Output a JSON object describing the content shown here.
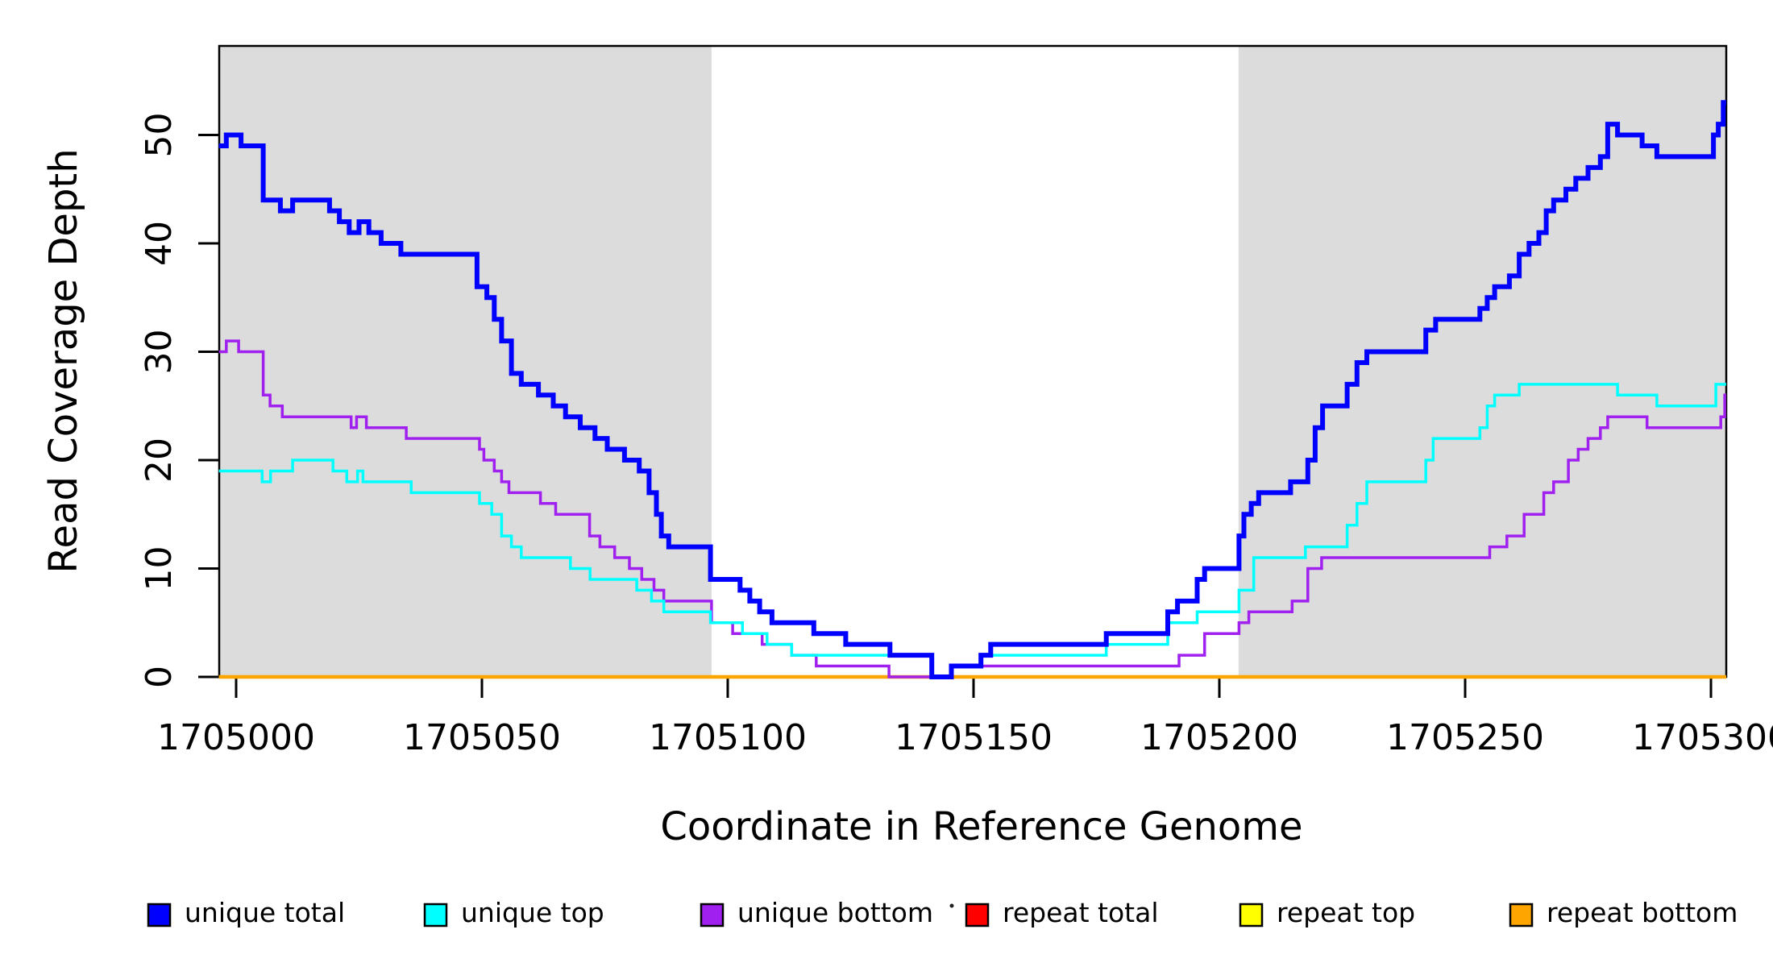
{
  "figure": {
    "xlabel": "Coordinate in Reference Genome",
    "ylabel": "Read Coverage Depth"
  },
  "colors": {
    "unique_total": "#0000FF",
    "unique_top": "#00FFFF",
    "unique_bottom": "#A020F0",
    "repeat_total": "#FF0000",
    "repeat_top": "#FFFF00",
    "repeat_bottom": "#FFA500",
    "shaded_region": "#DCDCDC",
    "axis": "#000000",
    "background": "#FFFFFF"
  },
  "legend": {
    "items": [
      {
        "label": "unique total",
        "color": "#0000FF"
      },
      {
        "label": "unique top",
        "color": "#00FFFF"
      },
      {
        "label": "unique bottom",
        "color": "#A020F0"
      },
      {
        "label": "repeat total",
        "color": "#FF0000"
      },
      {
        "label": "repeat top",
        "color": "#FFFF00"
      },
      {
        "label": "repeat bottom",
        "color": "#FFA500"
      }
    ]
  },
  "chart_data": {
    "type": "line",
    "step_style": "after",
    "title": "",
    "xlabel": "Coordinate in Reference Genome",
    "ylabel": "Read Coverage Depth",
    "x_range": [
      1704996.5,
      1705303.1
    ],
    "y_range": [
      0,
      58
    ],
    "grid": false,
    "legend_position": "bottom",
    "x_ticks": [
      {
        "value": 1705000,
        "label": "1705000"
      },
      {
        "value": 1705050,
        "label": "1705050"
      },
      {
        "value": 1705100,
        "label": "1705100"
      },
      {
        "value": 1705150,
        "label": "1705150"
      },
      {
        "value": 1705200,
        "label": "1705200"
      },
      {
        "value": 1705250,
        "label": "1705250"
      },
      {
        "value": 1705300,
        "label": "1705300"
      }
    ],
    "y_ticks": [
      {
        "value": 0,
        "label": "0"
      },
      {
        "value": 10,
        "label": "10"
      },
      {
        "value": 20,
        "label": "20"
      },
      {
        "value": 30,
        "label": "30"
      },
      {
        "value": 40,
        "label": "40"
      },
      {
        "value": 50,
        "label": "50"
      }
    ],
    "shaded_regions": [
      {
        "from": 1704996.5,
        "to": 1705096.7
      },
      {
        "from": 1705203.9,
        "to": 1705303.1
      }
    ],
    "shade_color": "#DCDCDC",
    "series": [
      {
        "name": "unique total",
        "color": "#0000FF",
        "width": 6,
        "points": [
          [
            1704996.5,
            49
          ],
          [
            1704998,
            50
          ],
          [
            1705001,
            49
          ],
          [
            1705005.5,
            44
          ],
          [
            1705009,
            43
          ],
          [
            1705011.5,
            44
          ],
          [
            1705019,
            43
          ],
          [
            1705021,
            42
          ],
          [
            1705023,
            41
          ],
          [
            1705025,
            42
          ],
          [
            1705027,
            41
          ],
          [
            1705029.5,
            40
          ],
          [
            1705033.5,
            39
          ],
          [
            1705049,
            36
          ],
          [
            1705051,
            35
          ],
          [
            1705052.5,
            33
          ],
          [
            1705054,
            31
          ],
          [
            1705056,
            28
          ],
          [
            1705058,
            27
          ],
          [
            1705061.5,
            26
          ],
          [
            1705064.5,
            25
          ],
          [
            1705067,
            24
          ],
          [
            1705070,
            23
          ],
          [
            1705073,
            22
          ],
          [
            1705075.5,
            21
          ],
          [
            1705079,
            20
          ],
          [
            1705082,
            19
          ],
          [
            1705084,
            17
          ],
          [
            1705085.5,
            15
          ],
          [
            1705086.5,
            13
          ],
          [
            1705088,
            12
          ],
          [
            1705096.5,
            9
          ],
          [
            1705102.5,
            8
          ],
          [
            1705104.5,
            7
          ],
          [
            1705106.5,
            6
          ],
          [
            1705109,
            5
          ],
          [
            1705117.5,
            4
          ],
          [
            1705124,
            3
          ],
          [
            1705133,
            2
          ],
          [
            1705141.5,
            0
          ],
          [
            1705145.5,
            1
          ],
          [
            1705151.5,
            2
          ],
          [
            1705153.5,
            3
          ],
          [
            1705177,
            4
          ],
          [
            1705189.5,
            6
          ],
          [
            1705191.5,
            7
          ],
          [
            1705195.5,
            9
          ],
          [
            1705197,
            10
          ],
          [
            1705204,
            13
          ],
          [
            1705205,
            15
          ],
          [
            1705206.5,
            16
          ],
          [
            1705208,
            17
          ],
          [
            1705214.5,
            18
          ],
          [
            1705218,
            20
          ],
          [
            1705219.5,
            23
          ],
          [
            1705221,
            25
          ],
          [
            1705226,
            27
          ],
          [
            1705228,
            29
          ],
          [
            1705230,
            30
          ],
          [
            1705242,
            32
          ],
          [
            1705244,
            33
          ],
          [
            1705253,
            34
          ],
          [
            1705254.5,
            35
          ],
          [
            1705256,
            36
          ],
          [
            1705259,
            37
          ],
          [
            1705261,
            39
          ],
          [
            1705263,
            40
          ],
          [
            1705265,
            41
          ],
          [
            1705266.5,
            43
          ],
          [
            1705268,
            44
          ],
          [
            1705270.5,
            45
          ],
          [
            1705272.5,
            46
          ],
          [
            1705275,
            47
          ],
          [
            1705277.5,
            48
          ],
          [
            1705279,
            51
          ],
          [
            1705281,
            50
          ],
          [
            1705286,
            49
          ],
          [
            1705289,
            48
          ],
          [
            1705300.5,
            50
          ],
          [
            1705301.5,
            51
          ],
          [
            1705302.5,
            53
          ],
          [
            1705303.1,
            53
          ]
        ]
      },
      {
        "name": "unique top",
        "color": "#00FFFF",
        "width": 3.5,
        "points": [
          [
            1704996.5,
            19
          ],
          [
            1705005.3,
            18
          ],
          [
            1705007,
            19
          ],
          [
            1705011.5,
            20
          ],
          [
            1705019.7,
            19
          ],
          [
            1705022.5,
            18
          ],
          [
            1705024.7,
            19
          ],
          [
            1705025.8,
            18
          ],
          [
            1705035.6,
            17
          ],
          [
            1705049.5,
            16
          ],
          [
            1705052,
            15
          ],
          [
            1705054,
            13
          ],
          [
            1705056,
            12
          ],
          [
            1705058,
            11
          ],
          [
            1705068,
            10
          ],
          [
            1705072,
            9
          ],
          [
            1705081.5,
            8
          ],
          [
            1705084.5,
            7
          ],
          [
            1705087,
            6
          ],
          [
            1705096.5,
            5
          ],
          [
            1705103,
            4
          ],
          [
            1705108,
            3
          ],
          [
            1705113,
            2
          ],
          [
            1705141.5,
            0
          ],
          [
            1705145.5,
            1
          ],
          [
            1705151.5,
            2
          ],
          [
            1705177,
            3
          ],
          [
            1705189.5,
            5
          ],
          [
            1705195.5,
            6
          ],
          [
            1705204,
            8
          ],
          [
            1705207,
            11
          ],
          [
            1705217.5,
            12
          ],
          [
            1705226,
            14
          ],
          [
            1705228,
            16
          ],
          [
            1705230,
            18
          ],
          [
            1705242,
            20
          ],
          [
            1705243.5,
            22
          ],
          [
            1705253,
            23
          ],
          [
            1705254.5,
            25
          ],
          [
            1705256,
            26
          ],
          [
            1705261,
            27
          ],
          [
            1705281,
            26
          ],
          [
            1705289,
            25
          ],
          [
            1705301,
            27
          ],
          [
            1705303.1,
            27
          ]
        ]
      },
      {
        "name": "unique bottom",
        "color": "#A020F0",
        "width": 3.5,
        "points": [
          [
            1704996.5,
            30
          ],
          [
            1704998,
            31
          ],
          [
            1705000.5,
            30
          ],
          [
            1705005.5,
            26
          ],
          [
            1705006.9,
            25
          ],
          [
            1705009.4,
            24
          ],
          [
            1705023.4,
            23
          ],
          [
            1705024.5,
            24
          ],
          [
            1705026.5,
            23
          ],
          [
            1705034.6,
            22
          ],
          [
            1705049.5,
            21
          ],
          [
            1705050.4,
            20
          ],
          [
            1705052.5,
            19
          ],
          [
            1705054,
            18
          ],
          [
            1705055.5,
            17
          ],
          [
            1705061.9,
            16
          ],
          [
            1705065,
            15
          ],
          [
            1705071.9,
            13
          ],
          [
            1705074,
            12
          ],
          [
            1705077,
            11
          ],
          [
            1705080,
            10
          ],
          [
            1705082.5,
            9
          ],
          [
            1705085,
            8
          ],
          [
            1705087,
            7
          ],
          [
            1705096.7,
            5
          ],
          [
            1705101,
            4
          ],
          [
            1705107,
            3
          ],
          [
            1705113,
            2
          ],
          [
            1705118,
            1
          ],
          [
            1705132.8,
            0
          ],
          [
            1705145.4,
            1
          ],
          [
            1705191.8,
            2
          ],
          [
            1705197,
            4
          ],
          [
            1705204,
            5
          ],
          [
            1705206,
            6
          ],
          [
            1705214.8,
            7
          ],
          [
            1705218,
            10
          ],
          [
            1705220.8,
            11
          ],
          [
            1705255,
            12
          ],
          [
            1705258.5,
            13
          ],
          [
            1705262,
            15
          ],
          [
            1705266,
            17
          ],
          [
            1705268,
            18
          ],
          [
            1705271,
            20
          ],
          [
            1705273,
            21
          ],
          [
            1705275,
            22
          ],
          [
            1705277.5,
            23
          ],
          [
            1705279,
            24
          ],
          [
            1705287,
            23
          ],
          [
            1705302,
            24
          ],
          [
            1705302.8,
            26
          ],
          [
            1705303.1,
            26
          ]
        ]
      },
      {
        "name": "repeat total",
        "color": "#FF0000",
        "width": 3.5,
        "points": [
          [
            1704996.5,
            0
          ],
          [
            1705303.1,
            0
          ]
        ]
      },
      {
        "name": "repeat top",
        "color": "#FFFF00",
        "width": 3.5,
        "points": [
          [
            1704996.5,
            0
          ],
          [
            1705303.1,
            0
          ]
        ]
      },
      {
        "name": "repeat bottom",
        "color": "#FFA500",
        "width": 4.5,
        "points": [
          [
            1704996.5,
            0
          ],
          [
            1705303.1,
            0
          ]
        ]
      }
    ]
  }
}
